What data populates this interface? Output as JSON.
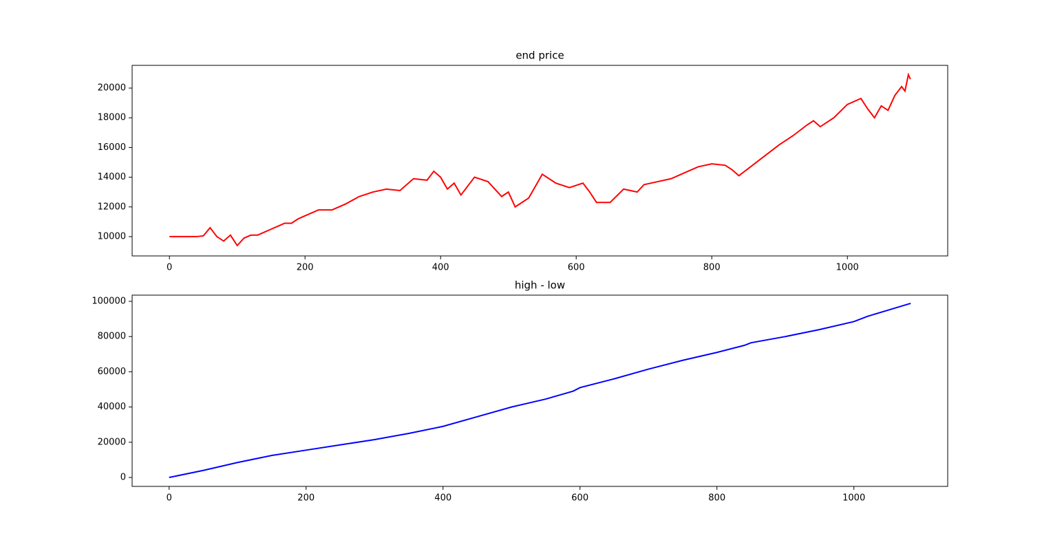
{
  "chart_data": [
    {
      "type": "line",
      "title": "end price",
      "color": "#ff0000",
      "x": [
        0,
        20,
        40,
        50,
        60,
        70,
        80,
        90,
        100,
        110,
        120,
        130,
        140,
        150,
        160,
        170,
        180,
        190,
        200,
        220,
        240,
        260,
        280,
        300,
        320,
        340,
        360,
        380,
        390,
        400,
        410,
        420,
        430,
        450,
        470,
        490,
        500,
        510,
        530,
        550,
        570,
        590,
        610,
        620,
        630,
        650,
        670,
        690,
        700,
        720,
        740,
        760,
        780,
        800,
        820,
        830,
        840,
        860,
        880,
        900,
        920,
        940,
        950,
        960,
        980,
        1000,
        1020,
        1030,
        1040,
        1050,
        1060,
        1070,
        1080,
        1085,
        1090,
        1093
      ],
      "values": [
        10000,
        10000,
        10000,
        10050,
        10600,
        10000,
        9700,
        10100,
        9400,
        9900,
        10100,
        10100,
        10300,
        10500,
        10700,
        10900,
        10900,
        11200,
        11400,
        11800,
        11800,
        12200,
        12700,
        13000,
        13200,
        13100,
        13900,
        13800,
        14400,
        14000,
        13200,
        13600,
        12800,
        14000,
        13700,
        12700,
        13000,
        12000,
        12600,
        14200,
        13600,
        13300,
        13600,
        13000,
        12300,
        12300,
        13200,
        13000,
        13500,
        13700,
        13900,
        14300,
        14700,
        14900,
        14800,
        14500,
        14100,
        14800,
        15500,
        16200,
        16800,
        17500,
        17800,
        17400,
        18000,
        18900,
        19300,
        18600,
        18000,
        18800,
        18500,
        19500,
        20100,
        19800,
        20900,
        20600
      ],
      "xlim": [
        -55,
        1148
      ],
      "ylim": [
        8700,
        21530
      ],
      "xticks": [
        0,
        200,
        400,
        600,
        800,
        1000
      ],
      "yticks": [
        10000,
        12000,
        14000,
        16000,
        18000,
        20000
      ]
    },
    {
      "type": "line",
      "title": "high - low",
      "color": "#0000ff",
      "x": [
        0,
        50,
        100,
        150,
        200,
        250,
        300,
        350,
        400,
        450,
        500,
        550,
        590,
        600,
        650,
        700,
        750,
        800,
        840,
        850,
        900,
        950,
        1000,
        1020,
        1050,
        1080,
        1083
      ],
      "values": [
        0,
        4000,
        8500,
        12500,
        15500,
        18500,
        21500,
        25000,
        29000,
        34500,
        40000,
        44500,
        49000,
        51000,
        56000,
        61500,
        66500,
        71000,
        75000,
        76500,
        80000,
        84000,
        88500,
        91500,
        95000,
        98500,
        98800
      ],
      "xlim": [
        -54,
        1137
      ],
      "ylim": [
        -5078,
        103516
      ],
      "xticks": [
        0,
        200,
        400,
        600,
        800,
        1000
      ],
      "yticks": [
        0,
        20000,
        40000,
        60000,
        80000,
        100000
      ]
    }
  ]
}
